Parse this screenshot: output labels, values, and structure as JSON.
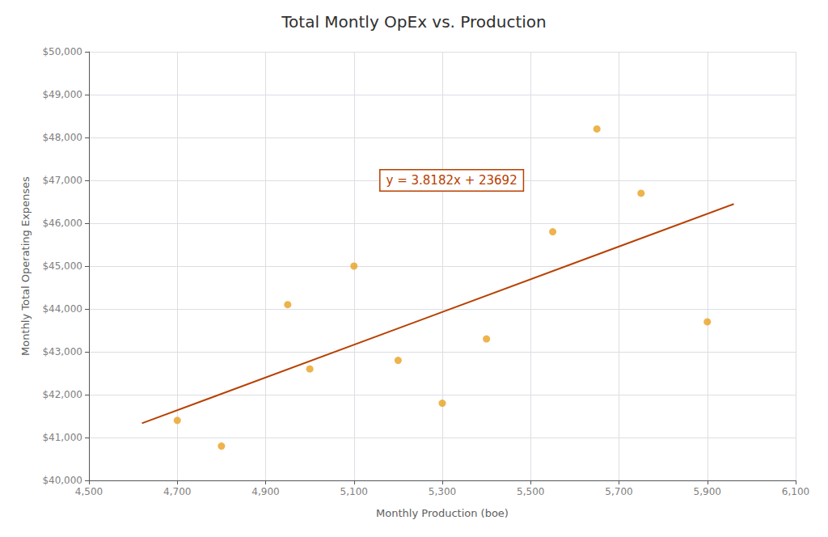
{
  "chart_data": {
    "type": "scatter",
    "title": "Total Montly OpEx vs. Production",
    "xlabel": "Monthly Production (boe)",
    "ylabel": "Monthly Total Operating Expenses",
    "series": [
      {
        "type": "scatter",
        "color": "#E8A020",
        "x": [
          4700,
          4800,
          4950,
          5000,
          5100,
          5200,
          5300,
          5400,
          5550,
          5650,
          5750,
          5900
        ],
        "values": [
          41400,
          40800,
          44100,
          42600,
          45000,
          42800,
          41800,
          43300,
          45800,
          48200,
          46700,
          43700
        ]
      },
      {
        "type": "line",
        "color": "#B84000",
        "x": [
          4620,
          5960
        ],
        "values": [
          41332.084,
          46448.472
        ]
      }
    ],
    "annotations": [
      {
        "text": "y = 3.8182x + 23692",
        "x": 5160,
        "y": 47000,
        "color": "#B84000"
      }
    ],
    "xlim": [
      4500,
      6100
    ],
    "xticks": [
      {
        "value": 4500,
        "label": "4,500"
      },
      {
        "value": 4700,
        "label": "4,700"
      },
      {
        "value": 4900,
        "label": "4,900"
      },
      {
        "value": 5100,
        "label": "5,100"
      },
      {
        "value": 5300,
        "label": "5,300"
      },
      {
        "value": 5500,
        "label": "5,500"
      },
      {
        "value": 5700,
        "label": "5,700"
      },
      {
        "value": 5900,
        "label": "5,900"
      },
      {
        "value": 6100,
        "label": "6,100"
      }
    ],
    "ylim": [
      40000,
      50000
    ],
    "yticks": [
      {
        "value": 40000,
        "label": "$40,000"
      },
      {
        "value": 41000,
        "label": "$41,000"
      },
      {
        "value": 42000,
        "label": "$42,000"
      },
      {
        "value": 43000,
        "label": "$43,000"
      },
      {
        "value": 44000,
        "label": "$44,000"
      },
      {
        "value": 45000,
        "label": "$45,000"
      },
      {
        "value": 46000,
        "label": "$46,000"
      },
      {
        "value": 47000,
        "label": "$47,000"
      },
      {
        "value": 48000,
        "label": "$48,000"
      },
      {
        "value": 49000,
        "label": "$49,000"
      },
      {
        "value": 50000,
        "label": "$50,000"
      }
    ],
    "grid": true
  }
}
